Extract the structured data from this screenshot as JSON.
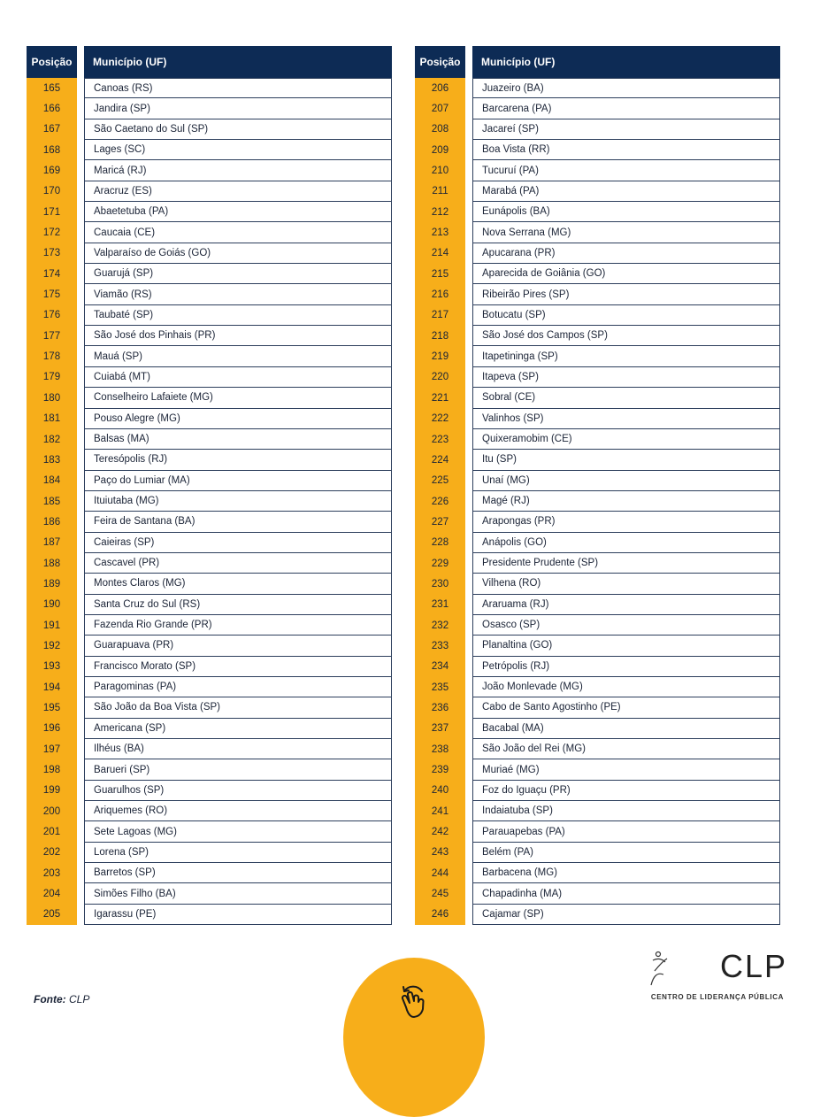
{
  "table_headers": {
    "position": "Posição",
    "municipality": "Município (UF)"
  },
  "left_rows": [
    [
      "165",
      "Canoas (RS)"
    ],
    [
      "166",
      "Jandira (SP)"
    ],
    [
      "167",
      "São Caetano do Sul (SP)"
    ],
    [
      "168",
      "Lages (SC)"
    ],
    [
      "169",
      "Maricá (RJ)"
    ],
    [
      "170",
      "Aracruz (ES)"
    ],
    [
      "171",
      "Abaetetuba (PA)"
    ],
    [
      "172",
      "Caucaia (CE)"
    ],
    [
      "173",
      "Valparaíso de Goiás (GO)"
    ],
    [
      "174",
      "Guarujá (SP)"
    ],
    [
      "175",
      "Viamão (RS)"
    ],
    [
      "176",
      "Taubaté (SP)"
    ],
    [
      "177",
      "São José dos Pinhais (PR)"
    ],
    [
      "178",
      "Mauá (SP)"
    ],
    [
      "179",
      "Cuiabá (MT)"
    ],
    [
      "180",
      "Conselheiro Lafaiete (MG)"
    ],
    [
      "181",
      "Pouso Alegre (MG)"
    ],
    [
      "182",
      "Balsas (MA)"
    ],
    [
      "183",
      "Teresópolis (RJ)"
    ],
    [
      "184",
      "Paço do Lumiar (MA)"
    ],
    [
      "185",
      "Ituiutaba (MG)"
    ],
    [
      "186",
      "Feira de Santana (BA)"
    ],
    [
      "187",
      "Caieiras (SP)"
    ],
    [
      "188",
      "Cascavel (PR)"
    ],
    [
      "189",
      "Montes Claros (MG)"
    ],
    [
      "190",
      "Santa Cruz do Sul (RS)"
    ],
    [
      "191",
      "Fazenda Rio Grande (PR)"
    ],
    [
      "192",
      "Guarapuava (PR)"
    ],
    [
      "193",
      "Francisco Morato (SP)"
    ],
    [
      "194",
      "Paragominas (PA)"
    ],
    [
      "195",
      "São João da Boa Vista (SP)"
    ],
    [
      "196",
      "Americana (SP)"
    ],
    [
      "197",
      "Ilhéus (BA)"
    ],
    [
      "198",
      "Barueri (SP)"
    ],
    [
      "199",
      "Guarulhos (SP)"
    ],
    [
      "200",
      "Ariquemes (RO)"
    ],
    [
      "201",
      "Sete Lagoas (MG)"
    ],
    [
      "202",
      "Lorena (SP)"
    ],
    [
      "203",
      "Barretos (SP)"
    ],
    [
      "204",
      "Simões Filho (BA)"
    ],
    [
      "205",
      "Igarassu (PE)"
    ]
  ],
  "right_rows": [
    [
      "206",
      "Juazeiro (BA)"
    ],
    [
      "207",
      "Barcarena (PA)"
    ],
    [
      "208",
      "Jacareí (SP)"
    ],
    [
      "209",
      "Boa Vista (RR)"
    ],
    [
      "210",
      "Tucuruí (PA)"
    ],
    [
      "211",
      "Marabá (PA)"
    ],
    [
      "212",
      "Eunápolis (BA)"
    ],
    [
      "213",
      "Nova Serrana (MG)"
    ],
    [
      "214",
      "Apucarana (PR)"
    ],
    [
      "215",
      "Aparecida de Goiânia (GO)"
    ],
    [
      "216",
      "Ribeirão Pires (SP)"
    ],
    [
      "217",
      "Botucatu (SP)"
    ],
    [
      "218",
      "São José dos Campos (SP)"
    ],
    [
      "219",
      "Itapetininga (SP)"
    ],
    [
      "220",
      "Itapeva (SP)"
    ],
    [
      "221",
      "Sobral (CE)"
    ],
    [
      "222",
      "Valinhos (SP)"
    ],
    [
      "223",
      "Quixeramobim (CE)"
    ],
    [
      "224",
      "Itu (SP)"
    ],
    [
      "225",
      "Unaí (MG)"
    ],
    [
      "226",
      "Magé (RJ)"
    ],
    [
      "227",
      "Arapongas (PR)"
    ],
    [
      "228",
      "Anápolis (GO)"
    ],
    [
      "229",
      "Presidente Prudente (SP)"
    ],
    [
      "230",
      "Vilhena (RO)"
    ],
    [
      "231",
      "Araruama (RJ)"
    ],
    [
      "232",
      "Osasco (SP)"
    ],
    [
      "233",
      "Planaltina (GO)"
    ],
    [
      "234",
      "Petrópolis (RJ)"
    ],
    [
      "235",
      "João Monlevade (MG)"
    ],
    [
      "236",
      "Cabo de Santo Agostinho (PE)"
    ],
    [
      "237",
      "Bacabal (MA)"
    ],
    [
      "238",
      "São João del Rei (MG)"
    ],
    [
      "239",
      "Muriaé (MG)"
    ],
    [
      "240",
      "Foz do Iguaçu (PR)"
    ],
    [
      "241",
      "Indaiatuba (SP)"
    ],
    [
      "242",
      "Parauapebas (PA)"
    ],
    [
      "243",
      "Belém (PA)"
    ],
    [
      "244",
      "Barbacena (MG)"
    ],
    [
      "245",
      "Chapadinha (MA)"
    ],
    [
      "246",
      "Cajamar (SP)"
    ]
  ],
  "footer": {
    "source_label": "Fonte:",
    "source_value": "CLP",
    "swipe_icon": "swipe-hand-icon"
  },
  "logo": {
    "name": "CLP",
    "subtitle": "CENTRO DE LIDERANÇA PÚBLICA"
  },
  "colors": {
    "header": "#0d2b55",
    "accent": "#f7ae1a"
  }
}
